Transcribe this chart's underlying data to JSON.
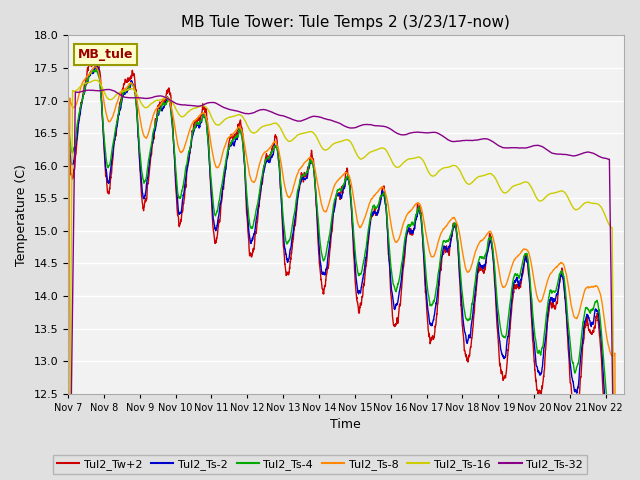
{
  "title": "MB Tule Tower: Tule Temps 2 (3/23/17-now)",
  "xlabel": "Time",
  "ylabel": "Temperature (C)",
  "ylim": [
    12.5,
    18.0
  ],
  "background_color": "#e8e8e8",
  "plot_bg_color": "#f0f0f0",
  "series": [
    {
      "label": "Tul2_Tw+2",
      "color": "#cc0000"
    },
    {
      "label": "Tul2_Ts-2",
      "color": "#0000cc"
    },
    {
      "label": "Tul2_Ts-4",
      "color": "#00aa00"
    },
    {
      "label": "Tul2_Ts-8",
      "color": "#ff8800"
    },
    {
      "label": "Tul2_Ts-16",
      "color": "#cccc00"
    },
    {
      "label": "Tul2_Ts-32",
      "color": "#880088"
    }
  ],
  "xtick_labels": [
    "Nov 7",
    "Nov 8",
    "Nov 9",
    "Nov 10",
    "Nov 11",
    "Nov 12",
    "Nov 13",
    "Nov 14",
    "Nov 15",
    "Nov 16",
    "Nov 17",
    "Nov 18",
    "Nov 19",
    "Nov 20",
    "Nov 21",
    "Nov 22"
  ],
  "watermark": "MB_tule"
}
